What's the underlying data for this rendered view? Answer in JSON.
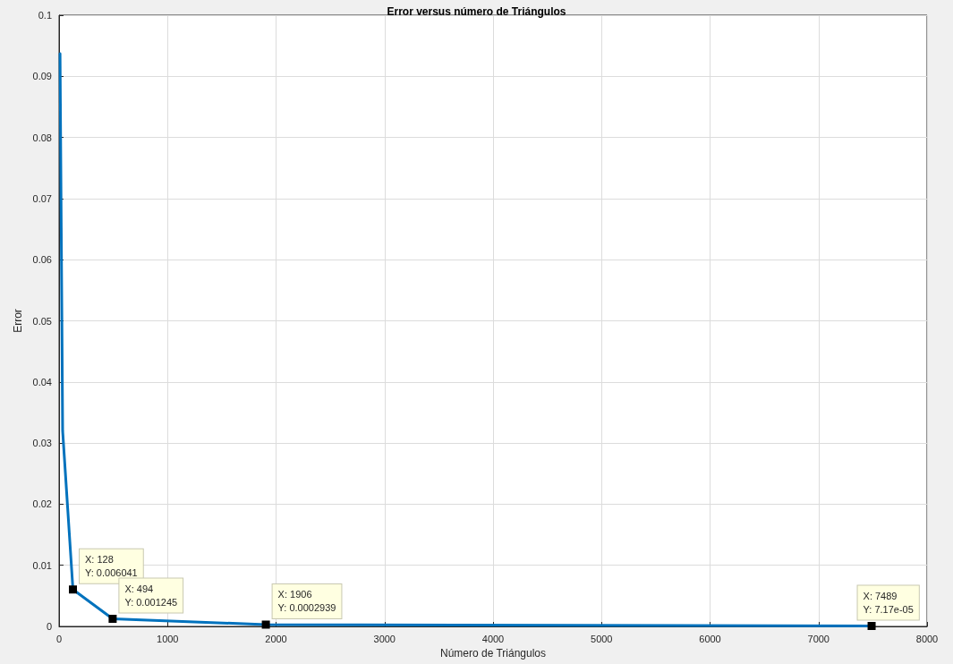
{
  "chart_data": {
    "type": "line",
    "title": "Error versus número de Triángulos",
    "xlabel": "Número de Triángulos",
    "ylabel": "Error",
    "x": [
      9,
      33,
      128,
      494,
      1906,
      7489
    ],
    "series": [
      {
        "color": "#0072bd",
        "values": [
          0.0937,
          0.032,
          0.006041,
          0.001245,
          0.0002939,
          7.17e-05
        ]
      }
    ],
    "xlim": [
      0,
      8000
    ],
    "xticks": [
      0,
      1000,
      2000,
      3000,
      4000,
      5000,
      6000,
      7000,
      8000
    ],
    "ylim": [
      0,
      0.1
    ],
    "yticks": [
      0,
      0.01,
      0.02,
      0.03,
      0.04,
      0.05,
      0.06,
      0.07,
      0.08,
      0.09,
      0.1
    ],
    "annotations": [
      {
        "text": "X: 128\nY: 0.006041",
        "x": 128,
        "y": 0.006041
      },
      {
        "text": "X: 494\nY: 0.001245",
        "x": 494,
        "y": 0.001245
      },
      {
        "text": "X: 1906\nY: 0.0002939",
        "x": 1906,
        "y": 0.0002939
      },
      {
        "text": "X: 7489\nY: 7.17e-05",
        "x": 7489,
        "y": 7.17e-05
      }
    ],
    "grid": true,
    "line_style": "solid"
  }
}
